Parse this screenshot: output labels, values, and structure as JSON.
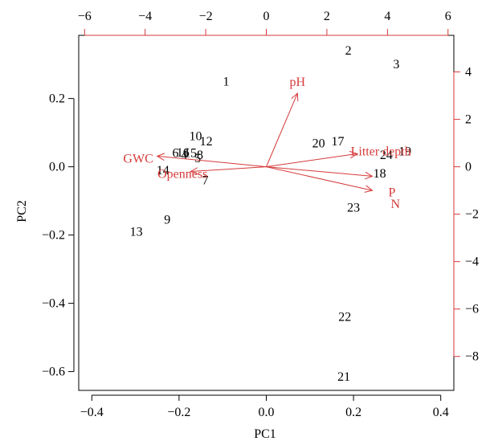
{
  "colors": {
    "primary_axis": "#000000",
    "loading_axis": "#d63a3a",
    "observation_labels": "#000000",
    "loading_vectors": "#d63a3a",
    "background": "#ffffff"
  },
  "chart_data": {
    "type": "biplot",
    "title": "",
    "xlabel": "PC1",
    "ylabel": "PC2",
    "xlim": [
      -0.43,
      0.43
    ],
    "ylim": [
      -0.655,
      0.385
    ],
    "x_ticks": [
      -0.4,
      -0.2,
      0.0,
      0.2,
      0.4
    ],
    "x_tick_labels": [
      "−0.4",
      "−0.2",
      "0.0",
      "0.2",
      "0.4"
    ],
    "y_ticks": [
      0.2,
      0.0,
      -0.2,
      -0.4,
      -0.6
    ],
    "y_tick_labels": [
      "0.2",
      "0.0",
      "−0.2",
      "−0.4",
      "−0.6"
    ],
    "loading_axis_scale": {
      "x_ticks": [
        -6,
        -4,
        -2,
        0,
        2,
        4,
        6
      ],
      "x_tick_labels": [
        "−6",
        "−4",
        "−2",
        "0",
        "2",
        "4",
        "6"
      ],
      "y_ticks": [
        4,
        2,
        0,
        -2,
        -4,
        -6,
        -8
      ],
      "y_tick_labels": [
        "4",
        "2",
        "0",
        "−2",
        "−4",
        "−6",
        "−8"
      ],
      "units_per_pc": 14.4
    },
    "observations": [
      {
        "label": "1",
        "x": -0.092,
        "y": 0.25
      },
      {
        "label": "2",
        "x": 0.188,
        "y": 0.34
      },
      {
        "label": "3",
        "x": 0.298,
        "y": 0.3
      },
      {
        "label": "4",
        "x": -0.188,
        "y": 0.035
      },
      {
        "label": "5",
        "x": -0.157,
        "y": 0.025
      },
      {
        "label": "6",
        "x": -0.208,
        "y": 0.04
      },
      {
        "label": "7",
        "x": -0.14,
        "y": -0.04
      },
      {
        "label": "8",
        "x": -0.152,
        "y": 0.035
      },
      {
        "label": "9",
        "x": -0.227,
        "y": -0.155
      },
      {
        "label": "10",
        "x": -0.162,
        "y": 0.09
      },
      {
        "label": "12",
        "x": -0.138,
        "y": 0.075
      },
      {
        "label": "13",
        "x": -0.298,
        "y": -0.19
      },
      {
        "label": "14",
        "x": -0.237,
        "y": -0.01
      },
      {
        "label": "15",
        "x": -0.174,
        "y": 0.04
      },
      {
        "label": "16",
        "x": -0.191,
        "y": 0.042
      },
      {
        "label": "17",
        "x": 0.164,
        "y": 0.075
      },
      {
        "label": "18",
        "x": 0.26,
        "y": -0.02
      },
      {
        "label": "19",
        "x": 0.318,
        "y": 0.045
      },
      {
        "label": "20",
        "x": 0.12,
        "y": 0.068
      },
      {
        "label": "21",
        "x": 0.178,
        "y": -0.615
      },
      {
        "label": "22",
        "x": 0.18,
        "y": -0.44
      },
      {
        "label": "23",
        "x": 0.2,
        "y": -0.12
      },
      {
        "label": "24",
        "x": 0.275,
        "y": 0.035
      }
    ],
    "loadings": [
      {
        "name": "pH",
        "x": 1.03,
        "y": 3.1,
        "label_anchor": "middle",
        "label_dx": 0,
        "label_dy": -14
      },
      {
        "name": "Litter depth",
        "x": 3.0,
        "y": 0.55,
        "label_anchor": "start",
        "label_dx": -8,
        "label_dy": -3
      },
      {
        "name": "P",
        "x": 3.5,
        "y": -0.4,
        "label_anchor": "start",
        "label_dx": 20,
        "label_dy": 20
      },
      {
        "name": "N",
        "x": 3.5,
        "y": -1.0,
        "label_anchor": "start",
        "label_dx": 23,
        "label_dy": 17
      },
      {
        "name": "GWC",
        "x": -3.6,
        "y": 0.45,
        "label_anchor": "end",
        "label_dx": -5,
        "label_dy": 3
      },
      {
        "name": "Openness",
        "x": -2.5,
        "y": -0.2,
        "label_anchor": "middle",
        "label_dx": -10,
        "label_dy": 3
      }
    ]
  }
}
